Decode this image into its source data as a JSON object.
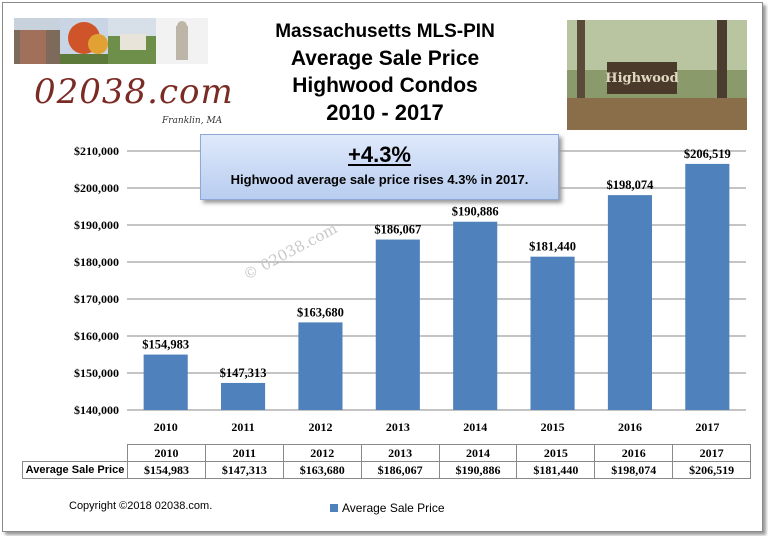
{
  "titles": [
    "Massachusetts  MLS-PIN",
    "Average Sale Price",
    "Highwood Condos",
    "2010 - 2017"
  ],
  "brand": {
    "name": "02038.com",
    "location": "Franklin, MA"
  },
  "callout": {
    "headline": "+4.3%",
    "text": "Highwood average sale price rises 4.3% in 2017."
  },
  "watermark": "© 02038.com",
  "copyright": "Copyright ©2018 02038.com.",
  "colors": {
    "bar": "#4f81bd",
    "callout_top": "#dfe9fb",
    "callout_bottom": "#b8cdf0",
    "brand": "#7a2b24"
  },
  "table": {
    "row_label": "Average Sale Price"
  },
  "chart_data": {
    "type": "bar",
    "categories": [
      "2010",
      "2011",
      "2012",
      "2013",
      "2014",
      "2015",
      "2016",
      "2017"
    ],
    "series": [
      {
        "name": "Average Sale Price",
        "values": [
          154983,
          147313,
          163680,
          186067,
          190886,
          181440,
          198074,
          206519
        ]
      }
    ],
    "data_labels": [
      "$154,983",
      "$147,313",
      "$163,680",
      "$186,067",
      "$190,886",
      "$181,440",
      "$198,074",
      "$206,519"
    ],
    "ylim": [
      140000,
      210000
    ],
    "yticks": [
      140000,
      150000,
      160000,
      170000,
      180000,
      190000,
      200000,
      210000
    ],
    "ytick_labels": [
      "$140,000",
      "$150,000",
      "$160,000",
      "$170,000",
      "$180,000",
      "$190,000",
      "$200,000",
      "$210,000"
    ],
    "grid": true,
    "legend": "bottom",
    "data_table": true
  }
}
